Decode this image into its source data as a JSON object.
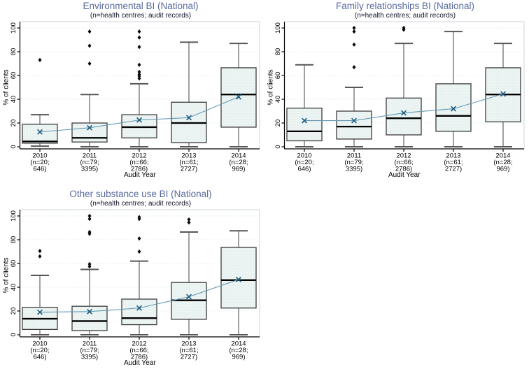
{
  "figure": {
    "background": "#ffffff",
    "ylabel": "% of clients",
    "xlabel": "Audit Year"
  },
  "colors": {
    "title": "#5a6b9e",
    "subtitle": "#14142a",
    "box_fill": "#e8f2f0",
    "box_dot": "#ffffff",
    "box_border": "#3d3d3d",
    "median": "#000000",
    "whisker_stem": "#6e6e6e",
    "whisker_cap": "#565656",
    "outlier": "#0a0a0a",
    "mean_line": "#6699b3",
    "mean_marker": "#1d5c7e",
    "gridline": "#d9eaec",
    "plot_border": "#ccd6d8",
    "axis": "#000000",
    "tick_label": "#000000"
  },
  "chart_data": [
    {
      "type": "box",
      "title": "Environmental BI (National)",
      "subtitle": "(n=health centres; audit records)",
      "xlabel": "Audit Year",
      "ylabel": "% of clients",
      "ylim": [
        0,
        100
      ],
      "yticks": [
        0,
        20,
        40,
        60,
        80,
        100
      ],
      "grid": true,
      "boxes": [
        {
          "label_lines": [
            "2010",
            "(n=20;",
            "646)"
          ],
          "whisker_low": 0.5,
          "q1": 3,
          "median": 4.5,
          "q3": 19,
          "whisker_high": 27,
          "mean": 12.5,
          "outliers": [
            73
          ]
        },
        {
          "label_lines": [
            "2011",
            "(n=79;",
            "3395)"
          ],
          "whisker_low": 0,
          "q1": 4,
          "median": 7.5,
          "q3": 20,
          "whisker_high": 44,
          "mean": 16,
          "outliers": [
            70,
            85,
            97
          ]
        },
        {
          "label_lines": [
            "2012",
            "(n=66;",
            "2786)"
          ],
          "whisker_low": 0,
          "q1": 7.5,
          "median": 16.5,
          "q3": 27,
          "whisker_high": 53,
          "mean": 22.5,
          "outliers": [
            57.5,
            59.5,
            61,
            63,
            69,
            84,
            92,
            97
          ]
        },
        {
          "label_lines": [
            "2013",
            "(n=61;",
            "2727)"
          ],
          "whisker_low": 0,
          "q1": 3.5,
          "median": 20,
          "q3": 37.5,
          "whisker_high": 88,
          "mean": 24.5,
          "outliers": []
        },
        {
          "label_lines": [
            "2014",
            "(n=28;",
            "969)"
          ],
          "whisker_low": 0,
          "q1": 16.5,
          "median": 44,
          "q3": 66.5,
          "whisker_high": 87,
          "mean": 42,
          "outliers": []
        }
      ]
    },
    {
      "type": "box",
      "title": "Family relationships BI (National)",
      "subtitle": "(n=health centres; audit records)",
      "xlabel": "Audit Year",
      "ylabel": "% of clients",
      "ylim": [
        0,
        100
      ],
      "yticks": [
        0,
        20,
        40,
        60,
        80,
        100
      ],
      "grid": true,
      "boxes": [
        {
          "label_lines": [
            "2010",
            "(n=20;",
            "646)"
          ],
          "whisker_low": 0,
          "q1": 5,
          "median": 13,
          "q3": 32.5,
          "whisker_high": 69,
          "mean": 22,
          "outliers": []
        },
        {
          "label_lines": [
            "2011",
            "(n=79;",
            "3395)"
          ],
          "whisker_low": 0,
          "q1": 6.5,
          "median": 17,
          "q3": 30,
          "whisker_high": 50,
          "mean": 22,
          "outliers": [
            67,
            86,
            97,
            100
          ]
        },
        {
          "label_lines": [
            "2012",
            "(n=66;",
            "2786)"
          ],
          "whisker_low": 0,
          "q1": 10,
          "median": 24,
          "q3": 41,
          "whisker_high": 87,
          "mean": 28.5,
          "outliers": [
            98.5,
            100
          ]
        },
        {
          "label_lines": [
            "2013",
            "(n=61;",
            "2727)"
          ],
          "whisker_low": 0,
          "q1": 13,
          "median": 26,
          "q3": 53,
          "whisker_high": 97,
          "mean": 32,
          "outliers": []
        },
        {
          "label_lines": [
            "2014",
            "(n=28;",
            "969)"
          ],
          "whisker_low": 0,
          "q1": 21,
          "median": 44,
          "q3": 66.5,
          "whisker_high": 87,
          "mean": 44.5,
          "outliers": []
        }
      ]
    },
    {
      "type": "box",
      "title": "Other substance use BI (National)",
      "subtitle": "(n=health centres; audit records)",
      "xlabel": "Audit Year",
      "ylabel": "% of clients",
      "ylim": [
        0,
        100
      ],
      "yticks": [
        0,
        20,
        40,
        60,
        80,
        100
      ],
      "grid": true,
      "boxes": [
        {
          "label_lines": [
            "2010",
            "(n=20;",
            "646)"
          ],
          "whisker_low": 0,
          "q1": 4.5,
          "median": 13.5,
          "q3": 23,
          "whisker_high": 50,
          "mean": 19,
          "outliers": [
            66,
            70.5
          ]
        },
        {
          "label_lines": [
            "2011",
            "(n=79;",
            "3395)"
          ],
          "whisker_low": 0,
          "q1": 3.5,
          "median": 11.5,
          "q3": 24,
          "whisker_high": 55,
          "mean": 19.5,
          "outliers": [
            57.5,
            59.5,
            85,
            86.5,
            97.5,
            100
          ]
        },
        {
          "label_lines": [
            "2012",
            "(n=66;",
            "2786)"
          ],
          "whisker_low": 0,
          "q1": 8.5,
          "median": 14,
          "q3": 30,
          "whisker_high": 62,
          "mean": 22.5,
          "outliers": [
            70,
            81,
            97.5,
            99
          ]
        },
        {
          "label_lines": [
            "2013",
            "(n=61;",
            "2727)"
          ],
          "whisker_low": 0,
          "q1": 13,
          "median": 29,
          "q3": 44,
          "whisker_high": 86.5,
          "mean": 32,
          "outliers": [
            94.5,
            97
          ]
        },
        {
          "label_lines": [
            "2014",
            "(n=28;",
            "969)"
          ],
          "whisker_low": 0,
          "q1": 22.5,
          "median": 46,
          "q3": 73.5,
          "whisker_high": 87.5,
          "mean": 46.5,
          "outliers": []
        }
      ]
    }
  ]
}
